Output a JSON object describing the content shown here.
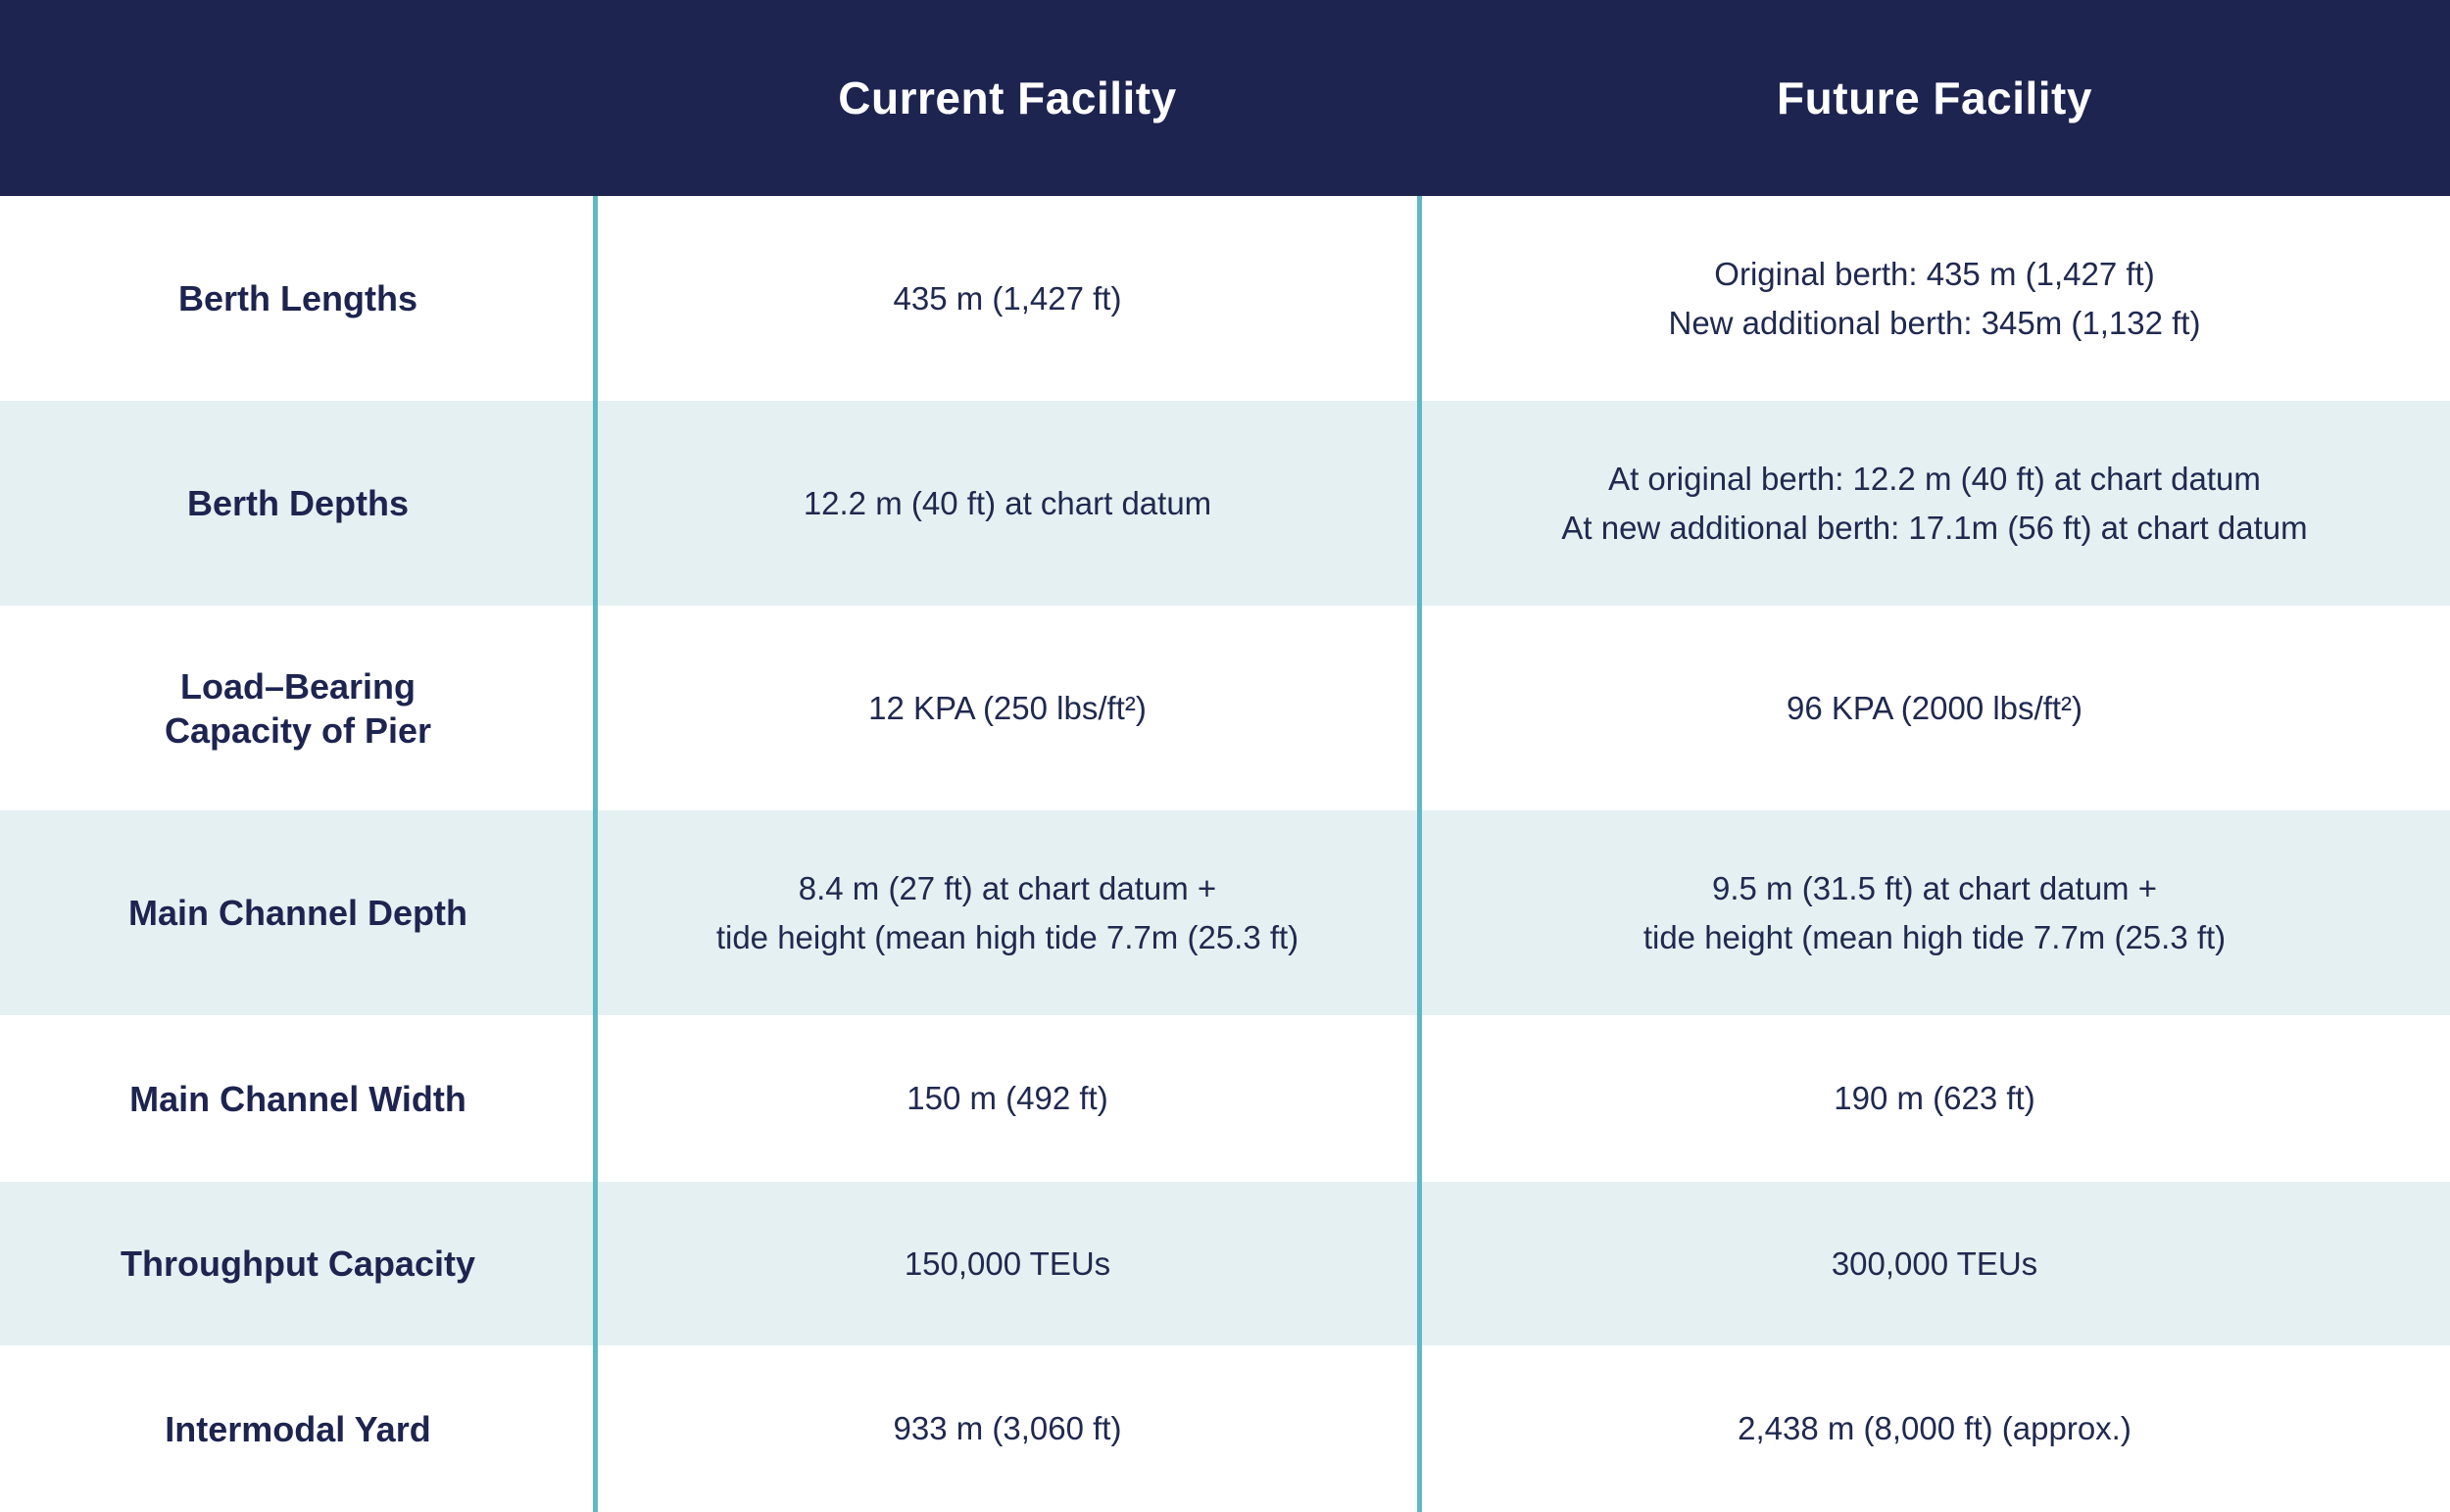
{
  "colors": {
    "navy": "#1e2450",
    "text": "#20294f",
    "stripe": "#e5f0f2",
    "teal": "#5fb9c4",
    "white": "#ffffff"
  },
  "table": {
    "header": {
      "current": "Current Facility",
      "future": "Future Facility"
    },
    "rows": [
      {
        "label": "Berth Lengths",
        "current": "435 m (1,427 ft)",
        "future": "Original berth: 435 m (1,427 ft)\nNew additional berth: 345m (1,132 ft)"
      },
      {
        "label": "Berth Depths",
        "current": "12.2 m (40 ft) at chart datum",
        "future": "At original berth: 12.2 m (40 ft) at chart datum\nAt new additional berth: 17.1m (56 ft) at chart datum"
      },
      {
        "label": "Load–Bearing\nCapacity of Pier",
        "current": "12 KPA (250 lbs/ft²)",
        "future": "96 KPA (2000 lbs/ft²)"
      },
      {
        "label": "Main Channel Depth",
        "current": "8.4 m (27 ft) at chart datum +\ntide height (mean high tide 7.7m (25.3 ft)",
        "future": "9.5 m (31.5 ft) at chart datum +\ntide height (mean high tide 7.7m (25.3 ft)"
      },
      {
        "label": "Main Channel Width",
        "current": "150 m (492 ft)",
        "future": "190 m (623 ft)"
      },
      {
        "label": "Throughput Capacity",
        "current": "150,000 TEUs",
        "future": "300,000 TEUs"
      },
      {
        "label": "Intermodal Yard",
        "current": "933 m (3,060 ft)",
        "future": "2,438 m (8,000 ft) (approx.)"
      }
    ]
  },
  "chart_data": {
    "type": "table",
    "title": "Current Facility vs Future Facility",
    "columns": [
      "",
      "Current Facility",
      "Future Facility"
    ],
    "rows": [
      [
        "Berth Lengths",
        "435 m (1,427 ft)",
        "Original berth: 435 m (1,427 ft); New additional berth: 345m (1,132 ft)"
      ],
      [
        "Berth Depths",
        "12.2 m (40 ft) at chart datum",
        "At original berth: 12.2 m (40 ft) at chart datum; At new additional berth: 17.1m (56 ft) at chart datum"
      ],
      [
        "Load–Bearing Capacity of Pier",
        "12 KPA (250 lbs/ft²)",
        "96 KPA (2000 lbs/ft²)"
      ],
      [
        "Main Channel Depth",
        "8.4 m (27 ft) at chart datum + tide height (mean high tide 7.7m (25.3 ft)",
        "9.5 m (31.5 ft) at chart datum + tide height (mean high tide 7.7m (25.3 ft)"
      ],
      [
        "Main Channel Width",
        "150 m (492 ft)",
        "190 m (623 ft)"
      ],
      [
        "Throughput Capacity",
        "150,000 TEUs",
        "300,000 TEUs"
      ],
      [
        "Intermodal Yard",
        "933 m (3,060 ft)",
        "2,438 m (8,000 ft) (approx.)"
      ]
    ],
    "layout": {
      "header_background": "#1e2450",
      "stripe_background": "#e5f0f2",
      "column_dividers_color": "#5fb9c4",
      "striped_rows": [
        "Berth Depths",
        "Main Channel Depth",
        "Throughput Capacity"
      ]
    }
  }
}
